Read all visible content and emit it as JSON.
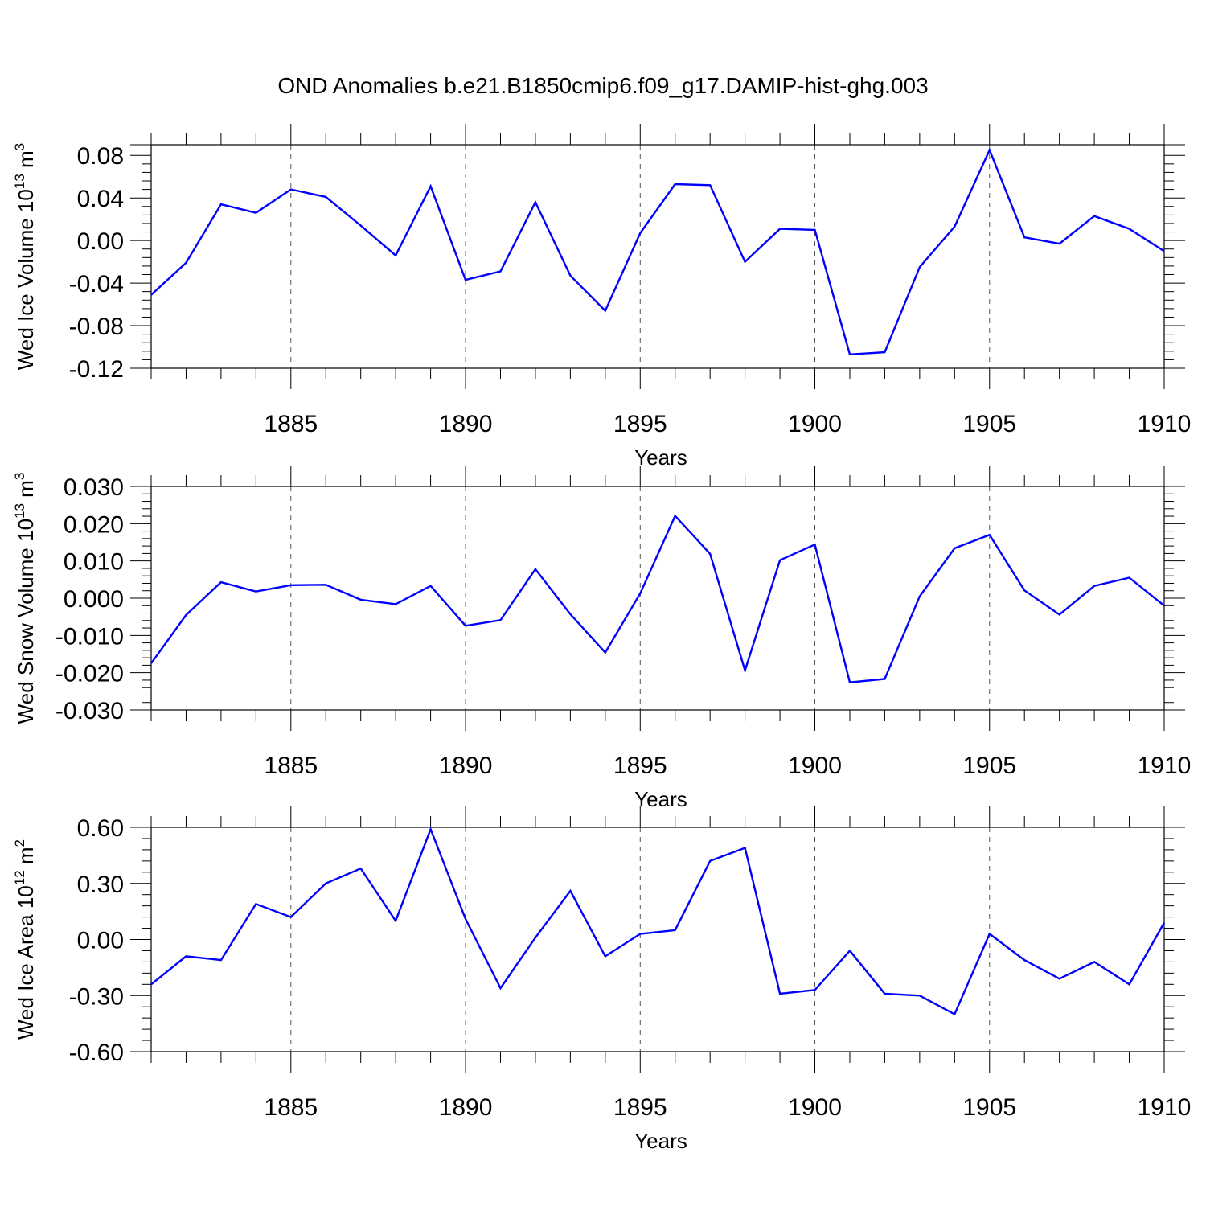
{
  "figure": {
    "title": "OND Anomalies b.e21.B1850cmip6.f09_g17.DAMIP-hist-ghg.003"
  },
  "chart_data": [
    {
      "type": "line",
      "title": "",
      "xlabel": "Years",
      "ylabel": {
        "main": "Wed Ice Volume 10",
        "exp": "13",
        "unit": " m",
        "unit_exp": "3"
      },
      "x": [
        1881,
        1882,
        1883,
        1884,
        1885,
        1886,
        1887,
        1888,
        1889,
        1890,
        1891,
        1892,
        1893,
        1894,
        1895,
        1896,
        1897,
        1898,
        1899,
        1900,
        1901,
        1902,
        1903,
        1904,
        1905,
        1906,
        1907,
        1908,
        1909,
        1910
      ],
      "series": [
        {
          "color": "#0000ff",
          "values": [
            -0.051,
            -0.021,
            0.034,
            0.026,
            0.048,
            0.041,
            0.014,
            -0.014,
            0.051,
            -0.037,
            -0.029,
            0.036,
            -0.033,
            -0.066,
            0.007,
            0.053,
            0.052,
            -0.02,
            0.011,
            0.01,
            -0.107,
            -0.105,
            -0.025,
            0.013,
            0.085,
            0.003,
            -0.003,
            0.023,
            0.011,
            -0.01
          ]
        }
      ],
      "xlim": [
        1881,
        1910
      ],
      "ylim": [
        -0.12,
        0.09
      ],
      "xticks": [
        1885,
        1890,
        1895,
        1900,
        1905,
        1910
      ],
      "xtick_labels": [
        "1885",
        "1890",
        "1895",
        "1900",
        "1905",
        "1910"
      ],
      "yticks": [
        -0.12,
        -0.08,
        -0.04,
        0.0,
        0.04,
        0.08
      ],
      "ytick_labels": [
        "-0.12",
        "-0.08",
        "-0.04",
        "0.00",
        "0.04",
        "0.08"
      ],
      "grid": "vertical dashed at labelled years"
    },
    {
      "type": "line",
      "title": "",
      "xlabel": "Years",
      "ylabel": {
        "main": "Wed Snow Volume 10",
        "exp": "13",
        "unit": " m",
        "unit_exp": "3"
      },
      "x": [
        1881,
        1882,
        1883,
        1884,
        1885,
        1886,
        1887,
        1888,
        1889,
        1890,
        1891,
        1892,
        1893,
        1894,
        1895,
        1896,
        1897,
        1898,
        1899,
        1900,
        1901,
        1902,
        1903,
        1904,
        1905,
        1906,
        1907,
        1908,
        1909,
        1910
      ],
      "series": [
        {
          "color": "#0000ff",
          "values": [
            -0.0175,
            -0.0045,
            0.0043,
            0.0018,
            0.0035,
            0.0036,
            -0.0004,
            -0.0016,
            0.0033,
            -0.0074,
            -0.0059,
            0.0078,
            -0.0043,
            -0.0146,
            0.0013,
            0.0221,
            0.0119,
            -0.0194,
            0.0102,
            0.0144,
            -0.0226,
            -0.0217,
            0.0005,
            0.0134,
            0.017,
            0.0021,
            -0.0044,
            0.0033,
            0.0055,
            -0.002
          ]
        }
      ],
      "xlim": [
        1881,
        1910
      ],
      "ylim": [
        -0.03,
        0.03
      ],
      "xticks": [
        1885,
        1890,
        1895,
        1900,
        1905,
        1910
      ],
      "xtick_labels": [
        "1885",
        "1890",
        "1895",
        "1900",
        "1905",
        "1910"
      ],
      "yticks": [
        -0.03,
        -0.02,
        -0.01,
        0.0,
        0.01,
        0.02,
        0.03
      ],
      "ytick_labels": [
        "-0.030",
        "-0.020",
        "-0.010",
        "0.000",
        "0.010",
        "0.020",
        "0.030"
      ],
      "grid": "vertical dashed at labelled years"
    },
    {
      "type": "line",
      "title": "",
      "xlabel": "Years",
      "ylabel": {
        "main": "Wed Ice Area 10",
        "exp": "12",
        "unit": " m",
        "unit_exp": "2"
      },
      "x": [
        1881,
        1882,
        1883,
        1884,
        1885,
        1886,
        1887,
        1888,
        1889,
        1890,
        1891,
        1892,
        1893,
        1894,
        1895,
        1896,
        1897,
        1898,
        1899,
        1900,
        1901,
        1902,
        1903,
        1904,
        1905,
        1906,
        1907,
        1908,
        1909,
        1910
      ],
      "series": [
        {
          "color": "#0000ff",
          "values": [
            -0.24,
            -0.09,
            -0.11,
            0.19,
            0.12,
            0.3,
            0.38,
            0.1,
            0.59,
            0.11,
            -0.26,
            0.01,
            0.26,
            -0.09,
            0.03,
            0.05,
            0.42,
            0.49,
            -0.29,
            -0.27,
            -0.06,
            -0.29,
            -0.3,
            -0.4,
            0.03,
            -0.11,
            -0.21,
            -0.12,
            -0.24,
            0.09
          ]
        }
      ],
      "xlim": [
        1881,
        1910
      ],
      "ylim": [
        -0.6,
        0.6
      ],
      "xticks": [
        1885,
        1890,
        1895,
        1900,
        1905,
        1910
      ],
      "xtick_labels": [
        "1885",
        "1890",
        "1895",
        "1900",
        "1905",
        "1910"
      ],
      "yticks": [
        -0.6,
        -0.3,
        0.0,
        0.3,
        0.6
      ],
      "ytick_labels": [
        "-0.60",
        "-0.30",
        "0.00",
        "0.30",
        "0.60"
      ],
      "grid": "vertical dashed at labelled years"
    }
  ]
}
